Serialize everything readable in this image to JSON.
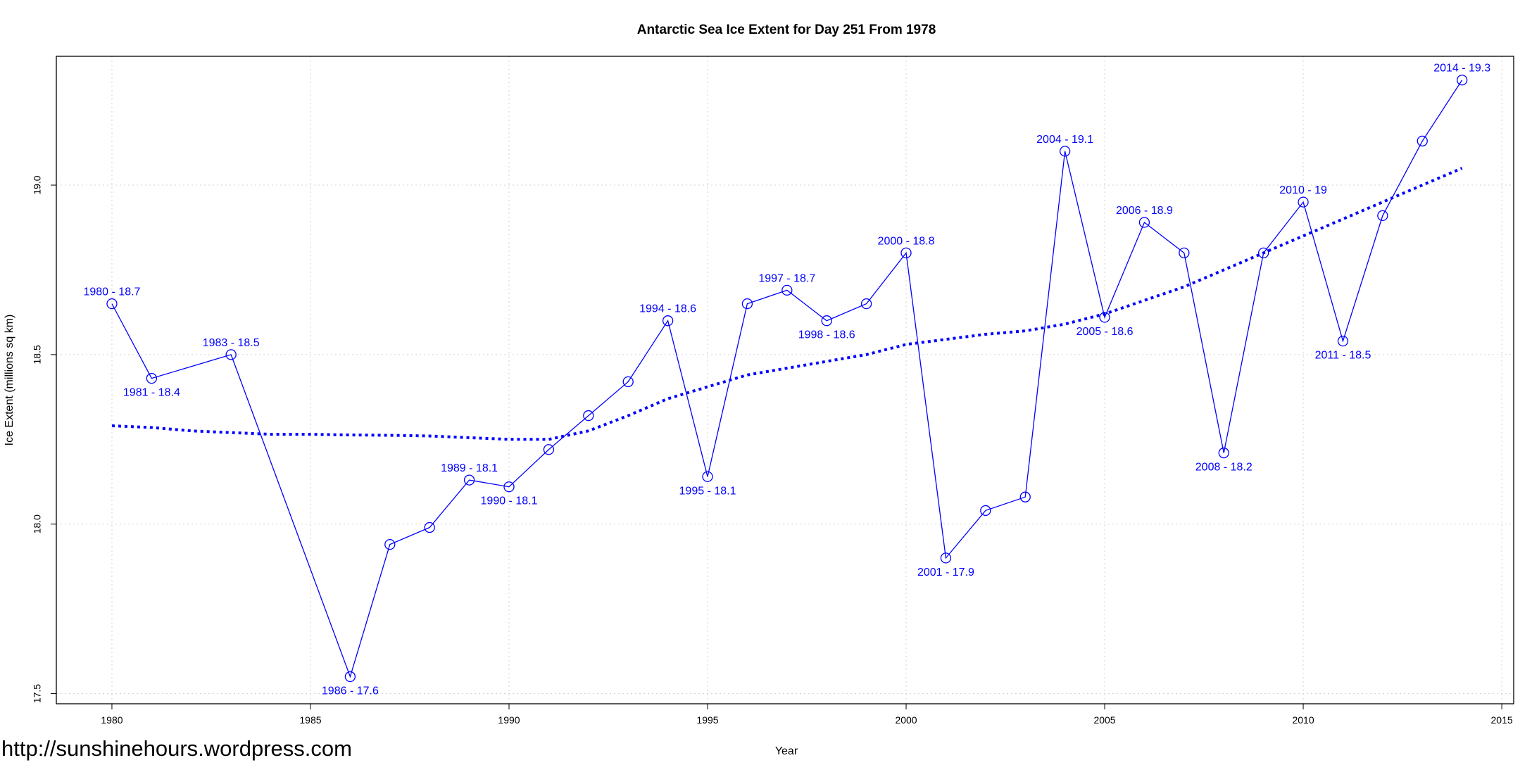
{
  "watermark": "http://sunshinehours.wordpress.com",
  "colors": {
    "series": "#0000ff",
    "grid": "#d3d3d3",
    "frame": "#000000"
  },
  "chart_data": {
    "type": "line",
    "title": "Antarctic Sea Ice Extent for Day 251 From 1978",
    "xlabel": "Year",
    "ylabel": "Ice Extent (millions sq km)",
    "xlim": [
      1978.6,
      2015.3
    ],
    "ylim": [
      17.47,
      19.38
    ],
    "xticks": [
      1980,
      1985,
      1990,
      1995,
      2000,
      2005,
      2010,
      2015
    ],
    "yticks": [
      17.5,
      18.0,
      18.5,
      19.0
    ],
    "ytick_labels": [
      "17.5",
      "18.0",
      "18.5",
      "19.0"
    ],
    "grid": true,
    "series": [
      {
        "style": "line-with-open-circles",
        "color": "#0000ff",
        "x": [
          1980,
          1981,
          1983,
          1986,
          1987,
          1988,
          1989,
          1990,
          1991,
          1992,
          1993,
          1994,
          1995,
          1996,
          1997,
          1998,
          1999,
          2000,
          2001,
          2002,
          2003,
          2004,
          2005,
          2006,
          2007,
          2008,
          2009,
          2010,
          2011,
          2012,
          2013,
          2014
        ],
        "y": [
          18.65,
          18.43,
          18.5,
          17.55,
          17.94,
          17.99,
          18.13,
          18.11,
          18.22,
          18.32,
          18.42,
          18.6,
          18.14,
          18.65,
          18.69,
          18.6,
          18.65,
          18.8,
          17.9,
          18.04,
          18.08,
          19.1,
          18.61,
          18.89,
          18.8,
          18.21,
          18.8,
          18.95,
          18.54,
          18.91,
          19.13,
          19.31
        ]
      },
      {
        "style": "dotted-trend",
        "color": "#0000ff",
        "x": [
          1980,
          1981,
          1982,
          1983,
          1984,
          1985,
          1986,
          1987,
          1988,
          1989,
          1990,
          1991,
          1992,
          1993,
          1994,
          1995,
          1996,
          1997,
          1998,
          1999,
          2000,
          2001,
          2002,
          2003,
          2004,
          2005,
          2006,
          2007,
          2008,
          2009,
          2010,
          2011,
          2012,
          2013,
          2014
        ],
        "y": [
          18.29,
          18.285,
          18.275,
          18.27,
          18.265,
          18.265,
          18.263,
          18.262,
          18.26,
          18.255,
          18.25,
          18.25,
          18.275,
          18.32,
          18.37,
          18.405,
          18.44,
          18.46,
          18.48,
          18.5,
          18.53,
          18.545,
          18.56,
          18.57,
          18.59,
          18.62,
          18.66,
          18.7,
          18.75,
          18.8,
          18.85,
          18.9,
          18.95,
          19.0,
          19.05
        ]
      }
    ],
    "annotations": [
      {
        "x": 1980,
        "y": 18.65,
        "text": "1980 - 18.7",
        "pos": "above"
      },
      {
        "x": 1981,
        "y": 18.43,
        "text": "1981 - 18.4",
        "pos": "below"
      },
      {
        "x": 1983,
        "y": 18.5,
        "text": "1983 - 18.5",
        "pos": "above"
      },
      {
        "x": 1986,
        "y": 17.55,
        "text": "1986 - 17.6",
        "pos": "below"
      },
      {
        "x": 1989,
        "y": 18.13,
        "text": "1989 - 18.1",
        "pos": "above"
      },
      {
        "x": 1990,
        "y": 18.11,
        "text": "1990 - 18.1",
        "pos": "below"
      },
      {
        "x": 1994,
        "y": 18.6,
        "text": "1994 - 18.6",
        "pos": "above"
      },
      {
        "x": 1995,
        "y": 18.14,
        "text": "1995 - 18.1",
        "pos": "below"
      },
      {
        "x": 1997,
        "y": 18.69,
        "text": "1997 - 18.7",
        "pos": "above"
      },
      {
        "x": 1998,
        "y": 18.6,
        "text": "1998 - 18.6",
        "pos": "below"
      },
      {
        "x": 2000,
        "y": 18.8,
        "text": "2000 - 18.8",
        "pos": "above"
      },
      {
        "x": 2001,
        "y": 17.9,
        "text": "2001 - 17.9",
        "pos": "below"
      },
      {
        "x": 2004,
        "y": 19.1,
        "text": "2004 - 19.1",
        "pos": "above"
      },
      {
        "x": 2005,
        "y": 18.61,
        "text": "2005 - 18.6",
        "pos": "below"
      },
      {
        "x": 2006,
        "y": 18.89,
        "text": "2006 - 18.9",
        "pos": "above"
      },
      {
        "x": 2008,
        "y": 18.21,
        "text": "2008 - 18.2",
        "pos": "below"
      },
      {
        "x": 2010,
        "y": 18.95,
        "text": "2010 - 19",
        "pos": "above"
      },
      {
        "x": 2011,
        "y": 18.54,
        "text": "2011 - 18.5",
        "pos": "below"
      },
      {
        "x": 2014,
        "y": 19.31,
        "text": "2014 - 19.3",
        "pos": "above"
      }
    ]
  }
}
